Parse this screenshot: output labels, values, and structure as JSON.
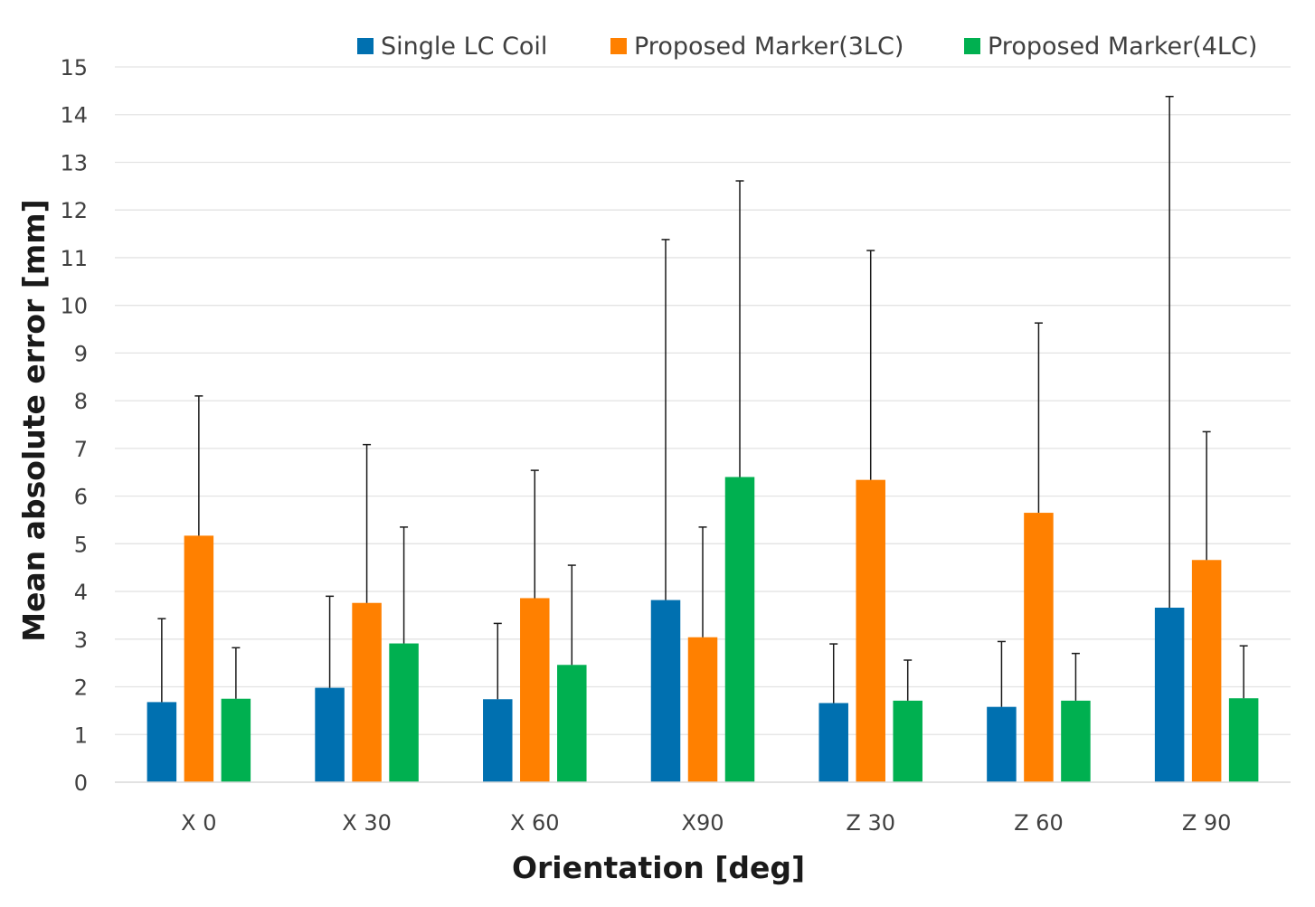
{
  "chart_data": {
    "type": "bar",
    "title": "",
    "xlabel": "Orientation [deg]",
    "ylabel": "Mean absolute error [mm]",
    "ylim": [
      0,
      15
    ],
    "yticks": [
      0,
      1,
      2,
      3,
      4,
      5,
      6,
      7,
      8,
      9,
      10,
      11,
      12,
      13,
      14,
      15
    ],
    "grid": true,
    "legend_position": "top",
    "categories": [
      "X 0",
      "X 30",
      "X 60",
      "X90",
      "Z 30",
      "Z 60",
      "Z 90"
    ],
    "series": [
      {
        "name": "Single LC Coil",
        "color": "#0070b0",
        "values": [
          1.68,
          1.98,
          1.74,
          3.82,
          1.66,
          1.58,
          3.66
        ],
        "error_upper": [
          3.43,
          3.9,
          3.33,
          11.38,
          2.9,
          2.95,
          14.38
        ]
      },
      {
        "name": "Proposed Marker(3LC)",
        "color": "#ff8000",
        "values": [
          5.17,
          3.76,
          3.86,
          3.04,
          6.34,
          5.65,
          4.66
        ],
        "error_upper": [
          8.1,
          7.08,
          6.54,
          5.35,
          11.15,
          9.63,
          7.35
        ]
      },
      {
        "name": "Proposed Marker(4LC)",
        "color": "#00b050",
        "values": [
          1.75,
          2.91,
          2.46,
          6.4,
          1.71,
          1.71,
          1.76
        ],
        "error_upper": [
          2.82,
          5.35,
          4.55,
          12.61,
          2.56,
          2.7,
          2.86
        ]
      }
    ]
  }
}
